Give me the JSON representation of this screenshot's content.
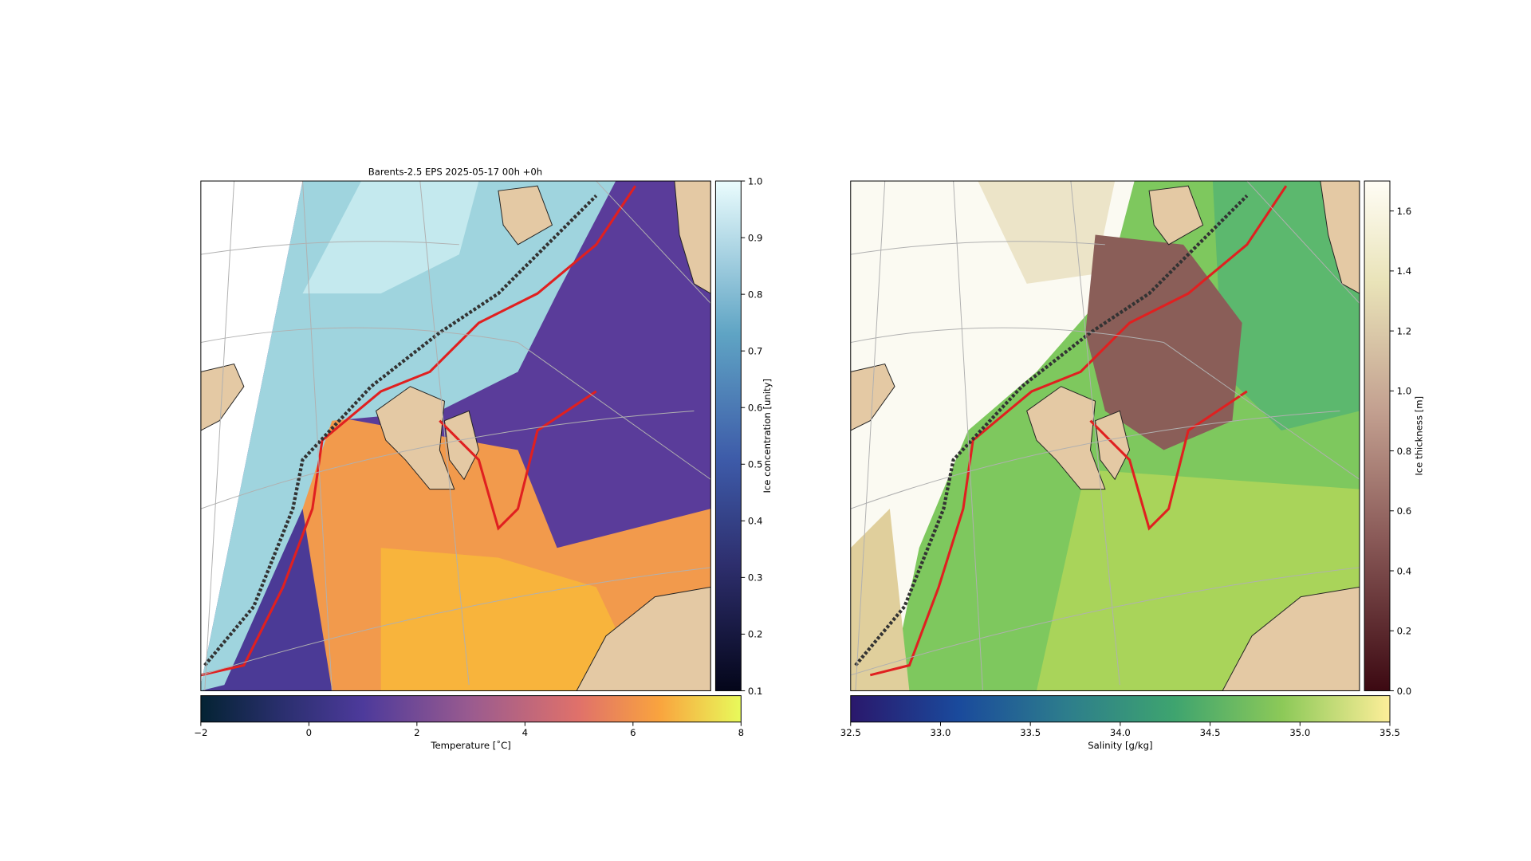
{
  "title": "Barents-2.5 EPS 2025-05-17 00h +0h",
  "colorbars": [
    {
      "label": "Ice concentration [unity]",
      "orientation": "vertical",
      "lim": [
        0.1,
        1.0
      ],
      "ticks": [
        0.1,
        0.2,
        0.3,
        0.4,
        0.5,
        0.6,
        0.7,
        0.8,
        0.9,
        {
          "value": 1.0,
          "label": "1.0"
        }
      ]
    },
    {
      "label": "Temperature [˚C]",
      "orientation": "horizontal",
      "lim": [
        -2,
        8
      ],
      "ticks": [
        {
          "value": -2,
          "label": "−2"
        },
        0,
        2,
        4,
        6,
        8
      ]
    },
    {
      "label": "Ice thickness [m]",
      "orientation": "vertical",
      "lim": [
        0,
        1.7
      ],
      "ticks": [
        {
          "value": 0,
          "label": "0.0"
        },
        0.2,
        0.4,
        0.6,
        0.8,
        {
          "value": 1.0,
          "label": "1.0"
        },
        1.2,
        1.4,
        1.6
      ]
    },
    {
      "label": "Salinity [g/kg]",
      "orientation": "horizontal",
      "lim": [
        32.5,
        35.5
      ],
      "ticks": [
        32.5,
        {
          "value": 33.0,
          "label": "33.0"
        },
        33.5,
        {
          "value": 34.0,
          "label": "34.0"
        },
        34.5,
        {
          "value": 35.0,
          "label": "35.0"
        },
        35.5
      ]
    }
  ]
}
